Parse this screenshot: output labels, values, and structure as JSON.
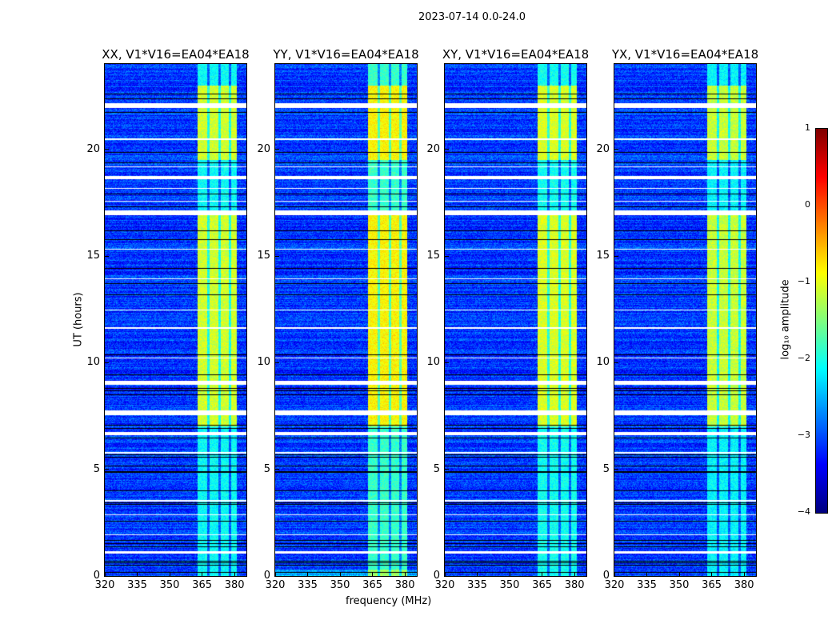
{
  "chart_data": {
    "type": "heatmap",
    "title": "2023-07-14 0.0-24.0",
    "xlabel": "frequency (MHz)",
    "ylabel": "UT (hours)",
    "xlim": [
      320,
      385.5
    ],
    "ylim": [
      0,
      24
    ],
    "xticks": [
      "320",
      "335",
      "350",
      "365",
      "380"
    ],
    "xtick_values": [
      320,
      335,
      350,
      365,
      380
    ],
    "yticks": [
      "0",
      "5",
      "10",
      "15",
      "20"
    ],
    "ytick_values": [
      0,
      5,
      10,
      15,
      20
    ],
    "panels": [
      {
        "title": "XX, V1*V16=EA04*EA18",
        "band_boost": 0.0
      },
      {
        "title": "YY, V1*V16=EA04*EA18",
        "band_boost": 0.25
      },
      {
        "title": "XY, V1*V16=EA04*EA18",
        "band_boost": 0.05
      },
      {
        "title": "YX, V1*V16=EA04*EA18",
        "band_boost": -0.05
      }
    ],
    "rfi_band_mhz": [
      363,
      381
    ],
    "band_gaps_mhz": [
      [
        367.5,
        368.5
      ],
      [
        372.5,
        373.5
      ],
      [
        377.5,
        378.5
      ]
    ],
    "bright_time_ranges_hours": [
      [
        7,
        17
      ],
      [
        19.5,
        23
      ]
    ],
    "flagged_rows_hours": [
      [
        1.05,
        1.15
      ],
      [
        1.9,
        1.95
      ],
      [
        2.85,
        2.9
      ],
      [
        3.5,
        3.55
      ],
      [
        5.75,
        5.8
      ],
      [
        6.6,
        6.75
      ],
      [
        7.55,
        7.75
      ],
      [
        8.95,
        9.15
      ],
      [
        10.2,
        10.25
      ],
      [
        11.6,
        11.65
      ],
      [
        12.45,
        12.5
      ],
      [
        13.9,
        13.95
      ],
      [
        15.3,
        15.35
      ],
      [
        16.9,
        17.15
      ],
      [
        17.55,
        17.6
      ],
      [
        18.15,
        18.2
      ],
      [
        18.6,
        18.75
      ],
      [
        19.15,
        19.2
      ],
      [
        20.45,
        20.5
      ],
      [
        21.95,
        22.15
      ]
    ],
    "colorbar": {
      "label": "log₁₀ amplitude",
      "range": [
        -4,
        1
      ],
      "ticks": [
        "−4",
        "−3",
        "−2",
        "−1",
        "0",
        "1"
      ],
      "tick_values": [
        -4,
        -3,
        -2,
        -1,
        0,
        1
      ],
      "colormap": "jet"
    }
  }
}
